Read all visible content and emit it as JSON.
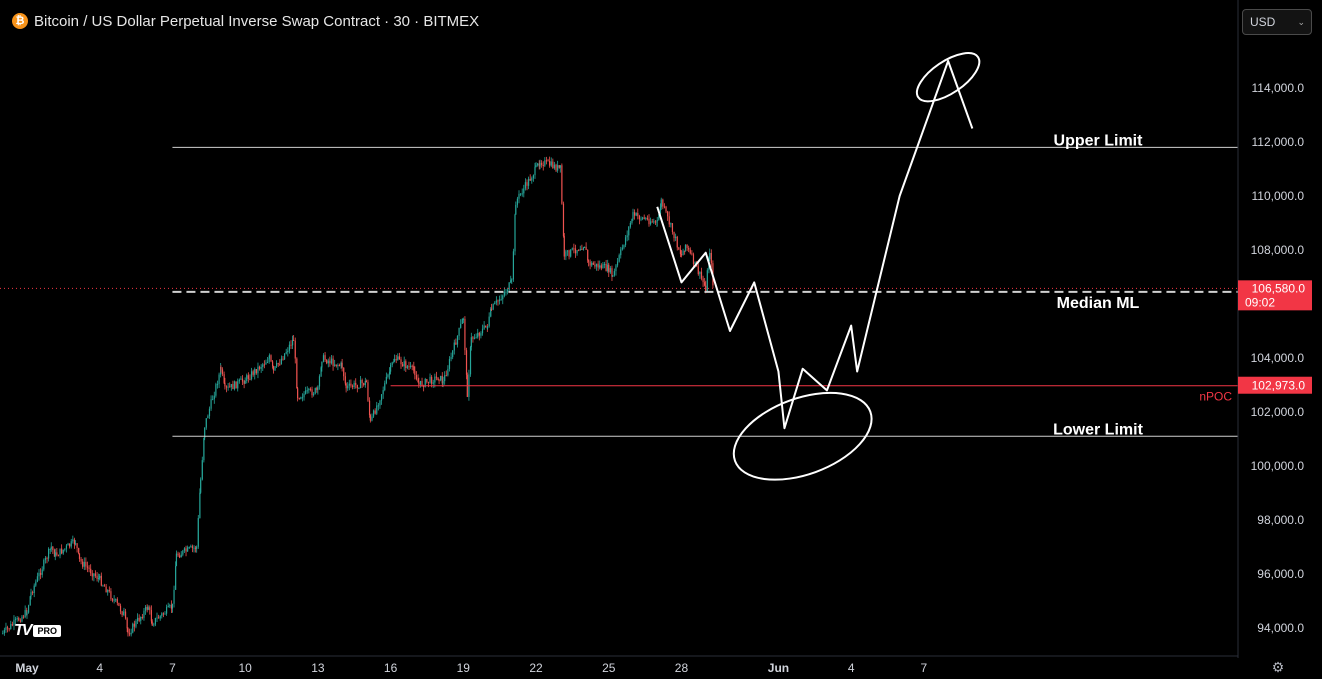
{
  "header": {
    "coin_icon": "bitcoin-icon",
    "coin_glyph": "₿",
    "title": "Bitcoin / US Dollar Perpetual Inverse Swap Contract · 30 · BITMEX"
  },
  "currency_selector": {
    "value": "USD",
    "icon": "chevron-down-icon"
  },
  "logo": {
    "mark": "TV",
    "badge": "PRO"
  },
  "settings_icon": "gear-icon",
  "colors": {
    "background": "#000000",
    "up_candle": "#26a69a",
    "down_candle": "#ef5350",
    "price_label_bg": "#f23645",
    "annotation": "#ffffff",
    "npoc": "#f23645",
    "axis_text": "#d1d4dc"
  },
  "chart_data": {
    "type": "candlestick",
    "symbol": "BTCUSD",
    "interval": "30",
    "exchange": "BITMEX",
    "y_axis": {
      "range": [
        93000,
        116000
      ],
      "ticks": [
        "94,000.0",
        "96,000.0",
        "98,000.0",
        "100,000.0",
        "102,000.0",
        "104,000.0",
        "108,000.0",
        "110,000.0",
        "112,000.0",
        "114,000.0"
      ]
    },
    "x_axis": {
      "range": [
        "2025-04-30",
        "2025-06-12"
      ],
      "ticks": [
        {
          "date": "2025-05-01",
          "label": "May",
          "bold": true
        },
        {
          "date": "2025-05-04",
          "label": "4"
        },
        {
          "date": "2025-05-07",
          "label": "7"
        },
        {
          "date": "2025-05-10",
          "label": "10"
        },
        {
          "date": "2025-05-13",
          "label": "13"
        },
        {
          "date": "2025-05-16",
          "label": "16"
        },
        {
          "date": "2025-05-19",
          "label": "19"
        },
        {
          "date": "2025-05-22",
          "label": "22"
        },
        {
          "date": "2025-05-25",
          "label": "25"
        },
        {
          "date": "2025-05-28",
          "label": "28"
        },
        {
          "date": "2025-06-01",
          "label": "Jun",
          "bold": true
        },
        {
          "date": "2025-06-04",
          "label": "4"
        },
        {
          "date": "2025-06-07",
          "label": "7"
        }
      ]
    },
    "current_price": {
      "value": 106580,
      "label": "106,580.0",
      "countdown": "09:02"
    },
    "npoc": {
      "value": 102973,
      "label": "102,973.0",
      "name": "nPOC"
    },
    "levels": [
      {
        "name": "Upper Limit",
        "price": 111800,
        "start": "2025-05-07",
        "style": "solid"
      },
      {
        "name": "Median ML",
        "price": 106450,
        "start": "2025-05-07",
        "style": "dashed"
      },
      {
        "name": "Lower Limit",
        "price": 101100,
        "start": "2025-05-07",
        "style": "solid"
      }
    ],
    "price_path": [
      [
        "2025-04-30",
        93800
      ],
      [
        "2025-05-01",
        94600
      ],
      [
        "2025-05-01",
        95300
      ],
      [
        "2025-05-02",
        97000
      ],
      [
        "2025-05-02",
        96700
      ],
      [
        "2025-05-03",
        97200
      ],
      [
        "2025-05-03",
        96500
      ],
      [
        "2025-05-04",
        95800
      ],
      [
        "2025-05-05",
        94500
      ],
      [
        "2025-05-05",
        93800
      ],
      [
        "2025-05-06",
        94800
      ],
      [
        "2025-05-06",
        94200
      ],
      [
        "2025-05-07",
        94800
      ],
      [
        "2025-05-07",
        96700
      ],
      [
        "2025-05-08",
        97000
      ],
      [
        "2025-05-08",
        99500
      ],
      [
        "2025-05-08",
        101500
      ],
      [
        "2025-05-09",
        103600
      ],
      [
        "2025-05-09",
        102800
      ],
      [
        "2025-05-10",
        103200
      ],
      [
        "2025-05-11",
        104000
      ],
      [
        "2025-05-11",
        103500
      ],
      [
        "2025-05-12",
        104700
      ],
      [
        "2025-05-12",
        102600
      ],
      [
        "2025-05-13",
        102800
      ],
      [
        "2025-05-13",
        104000
      ],
      [
        "2025-05-14",
        103700
      ],
      [
        "2025-05-14",
        102900
      ],
      [
        "2025-05-15",
        103100
      ],
      [
        "2025-05-15",
        101600
      ],
      [
        "2025-05-16",
        103600
      ],
      [
        "2025-05-16",
        104000
      ],
      [
        "2025-05-17",
        103500
      ],
      [
        "2025-05-17",
        103000
      ],
      [
        "2025-05-18",
        103300
      ],
      [
        "2025-05-18",
        103100
      ],
      [
        "2025-05-19",
        105500
      ],
      [
        "2025-05-19",
        102700
      ],
      [
        "2025-05-19",
        104700
      ],
      [
        "2025-05-20",
        105200
      ],
      [
        "2025-05-20",
        105800
      ],
      [
        "2025-05-21",
        106800
      ],
      [
        "2025-05-21",
        109800
      ],
      [
        "2025-05-22",
        111000
      ],
      [
        "2025-05-22",
        111300
      ],
      [
        "2025-05-23",
        111000
      ],
      [
        "2025-05-23",
        107800
      ],
      [
        "2025-05-24",
        108200
      ],
      [
        "2025-05-24",
        107500
      ],
      [
        "2025-05-25",
        107300
      ],
      [
        "2025-05-25",
        107000
      ],
      [
        "2025-05-26",
        109300
      ],
      [
        "2025-05-27",
        109000
      ],
      [
        "2025-05-27",
        109800
      ],
      [
        "2025-05-28",
        107800
      ],
      [
        "2025-05-28",
        108200
      ],
      [
        "2025-05-29",
        106600
      ],
      [
        "2025-05-29",
        108000
      ],
      [
        "2025-05-29",
        106500
      ]
    ],
    "drawing": {
      "projection_path": [
        [
          "2025-05-27",
          109600
        ],
        [
          "2025-05-28",
          106800
        ],
        [
          "2025-05-29",
          107900
        ],
        [
          "2025-05-30",
          105000
        ],
        [
          "2025-05-31",
          106800
        ],
        [
          "2025-06-01",
          103500
        ],
        [
          "2025-06-01",
          101400
        ],
        [
          "2025-06-02",
          103600
        ],
        [
          "2025-06-03",
          102800
        ],
        [
          "2025-06-04",
          105200
        ],
        [
          "2025-06-04",
          103500
        ],
        [
          "2025-06-06",
          110000
        ],
        [
          "2025-06-08",
          115000
        ],
        [
          "2025-06-09",
          112500
        ]
      ],
      "ellipses": [
        {
          "center": [
            "2025-06-02",
            101100
          ],
          "role": "target zone"
        },
        {
          "center": [
            "2025-06-08",
            114400
          ],
          "role": "target zone"
        }
      ]
    }
  }
}
